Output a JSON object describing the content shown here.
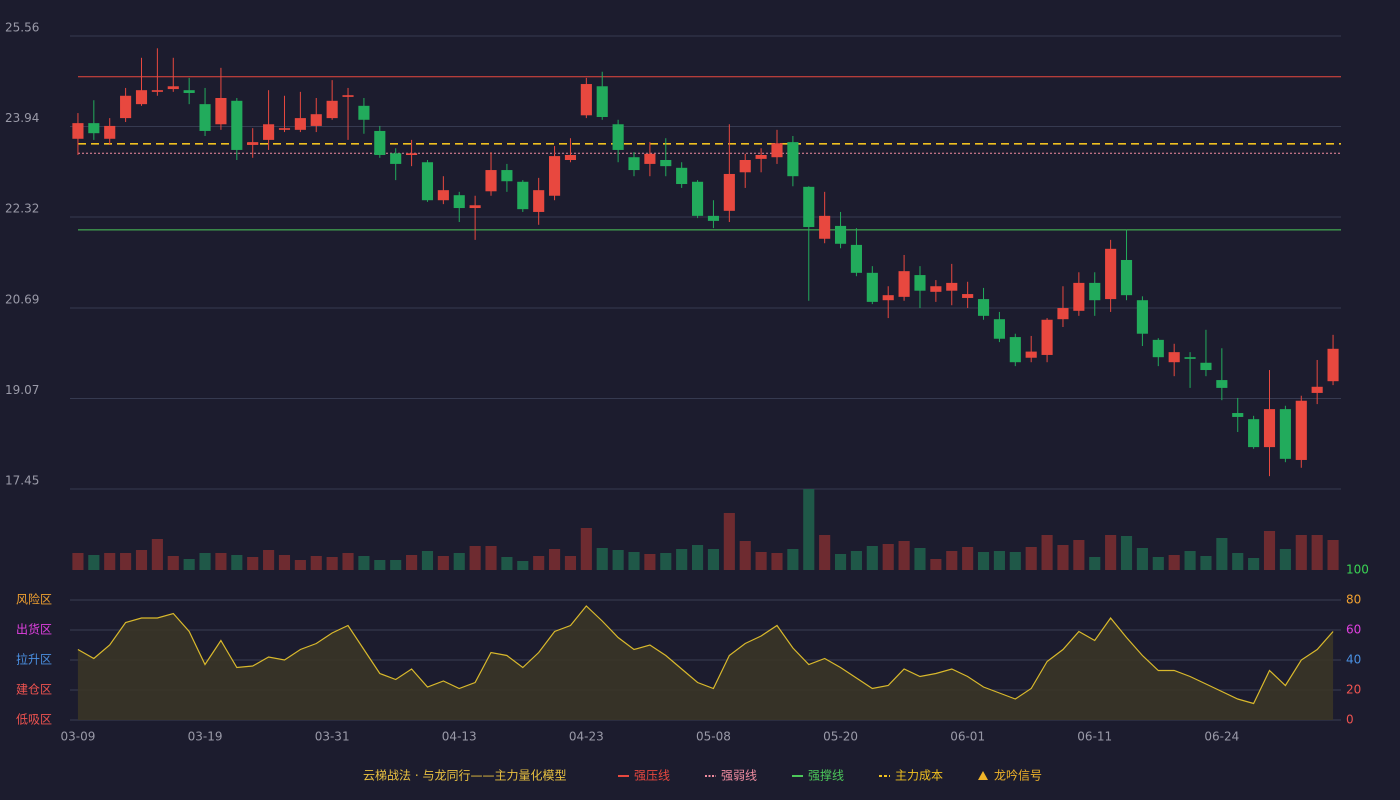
{
  "chart_data": [
    {
      "type": "candlestick",
      "categories": [
        "03-09",
        null,
        null,
        null,
        null,
        null,
        null,
        null,
        "03-19",
        null,
        null,
        null,
        null,
        null,
        null,
        null,
        "03-31",
        null,
        null,
        null,
        null,
        null,
        null,
        null,
        "04-13",
        null,
        null,
        null,
        null,
        null,
        null,
        null,
        "04-23",
        null,
        null,
        null,
        null,
        null,
        null,
        null,
        "05-08",
        null,
        null,
        null,
        null,
        null,
        null,
        null,
        "05-20",
        null,
        null,
        null,
        null,
        null,
        null,
        null,
        "06-01",
        null,
        null,
        null,
        null,
        null,
        null,
        null,
        "06-11",
        null,
        null,
        null,
        null,
        null,
        null,
        null,
        "06-24",
        null,
        null,
        null,
        null,
        null,
        null,
        null
      ],
      "open": [
        23.72,
        24.0,
        23.72,
        24.09,
        24.34,
        24.56,
        24.61,
        24.59,
        24.34,
        23.98,
        24.4,
        23.61,
        23.7,
        23.88,
        23.88,
        23.95,
        24.09,
        24.47,
        24.31,
        23.86,
        23.46,
        23.43,
        23.3,
        22.62,
        22.71,
        22.48,
        22.78,
        23.16,
        22.95,
        22.41,
        22.7,
        23.34,
        24.14,
        24.66,
        23.98,
        23.39,
        23.27,
        23.34,
        23.2,
        22.95,
        22.34,
        22.43,
        23.12,
        23.36,
        23.39,
        23.66,
        22.86,
        21.93,
        22.16,
        21.82,
        21.32,
        20.83,
        20.89,
        21.28,
        20.98,
        21.0,
        20.87,
        20.85,
        20.49,
        20.17,
        19.8,
        19.85,
        20.49,
        20.64,
        21.14,
        20.85,
        21.55,
        20.83,
        20.12,
        19.72,
        19.81,
        19.71,
        19.4,
        18.81,
        18.7,
        18.2,
        18.88,
        17.97,
        19.17,
        19.38
      ],
      "high": [
        24.18,
        24.41,
        24.09,
        24.63,
        25.17,
        25.34,
        25.17,
        24.81,
        24.63,
        24.99,
        24.45,
        23.91,
        24.59,
        24.49,
        24.56,
        24.45,
        24.77,
        24.63,
        24.45,
        23.95,
        23.55,
        23.7,
        23.34,
        23.05,
        22.77,
        22.7,
        23.48,
        23.27,
        22.98,
        23.02,
        23.59,
        23.73,
        24.81,
        24.92,
        24.06,
        23.48,
        23.66,
        23.73,
        23.3,
        22.98,
        22.62,
        23.98,
        23.45,
        23.55,
        23.88,
        23.77,
        22.87,
        22.77,
        22.41,
        22.12,
        21.44,
        21.08,
        21.64,
        21.44,
        21.19,
        21.48,
        21.16,
        21.05,
        20.62,
        20.23,
        20.19,
        20.51,
        21.08,
        21.33,
        21.33,
        21.91,
        22.09,
        20.9,
        20.15,
        20.05,
        19.9,
        20.3,
        19.97,
        19.08,
        18.76,
        19.58,
        18.94,
        19.12,
        19.76,
        20.21
      ],
      "low": [
        23.43,
        23.7,
        23.61,
        24.02,
        24.31,
        24.49,
        24.56,
        24.34,
        23.77,
        23.88,
        23.34,
        23.38,
        23.52,
        23.84,
        23.84,
        23.84,
        24.06,
        23.7,
        23.81,
        23.38,
        22.98,
        23.23,
        22.59,
        22.55,
        22.23,
        21.91,
        22.7,
        22.77,
        22.41,
        22.18,
        22.62,
        23.3,
        24.09,
        24.06,
        23.3,
        23.05,
        23.05,
        23.05,
        22.84,
        22.3,
        22.12,
        22.23,
        22.84,
        23.12,
        23.27,
        22.87,
        20.82,
        21.85,
        21.76,
        21.26,
        20.76,
        20.51,
        20.82,
        20.69,
        20.8,
        20.74,
        20.69,
        20.48,
        20.08,
        19.65,
        19.72,
        19.72,
        20.35,
        20.55,
        20.55,
        20.62,
        20.83,
        20.01,
        19.65,
        19.47,
        19.26,
        19.47,
        19.04,
        18.47,
        18.17,
        17.68,
        17.93,
        17.83,
        18.97,
        19.31
      ],
      "close": [
        24.0,
        23.82,
        23.95,
        24.49,
        24.59,
        24.59,
        24.66,
        24.54,
        23.86,
        24.45,
        23.52,
        23.66,
        23.98,
        23.91,
        24.09,
        24.16,
        24.4,
        24.5,
        24.06,
        23.43,
        23.27,
        23.46,
        22.62,
        22.8,
        22.48,
        22.53,
        23.16,
        22.96,
        22.46,
        22.8,
        23.41,
        23.43,
        24.7,
        24.11,
        23.52,
        23.16,
        23.45,
        23.23,
        22.91,
        22.34,
        22.25,
        23.09,
        23.34,
        23.43,
        23.64,
        23.05,
        22.14,
        22.34,
        21.84,
        21.32,
        20.8,
        20.92,
        21.35,
        21.0,
        21.08,
        21.14,
        20.94,
        20.55,
        20.14,
        19.72,
        19.91,
        20.48,
        20.69,
        21.14,
        20.83,
        21.75,
        20.92,
        20.23,
        19.81,
        19.9,
        19.78,
        19.58,
        19.26,
        18.74,
        18.2,
        18.88,
        17.99,
        19.03,
        19.28,
        19.96
      ],
      "up_color": "#e8483f",
      "down_color": "#22ab5c",
      "ylim": [
        17.45,
        25.56
      ],
      "yticks": [
        25.56,
        23.94,
        22.32,
        20.69,
        19.07,
        17.45
      ],
      "grid": true,
      "levels": [
        {
          "name": "强压线",
          "value": 24.83,
          "color": "#e8483f",
          "style": "solid"
        },
        {
          "name": "强弱线",
          "value": 23.46,
          "color": "#f08ca0",
          "style": "dotted"
        },
        {
          "name": "强撑线",
          "value": 22.09,
          "color": "#4cc75a",
          "style": "solid"
        },
        {
          "name": "主力成本",
          "value": 23.63,
          "color": "#f0c020",
          "style": "dashed"
        }
      ],
      "signal": {
        "name": "龙吟信号",
        "color": "#f0b429",
        "marker": "triangle"
      },
      "legend_title": "云梯战法 · 与龙同行——主力量化模型"
    },
    {
      "type": "bar",
      "values": [
        17,
        15,
        17,
        17,
        20,
        31,
        14,
        11,
        17,
        17,
        15,
        13,
        20,
        15,
        10,
        14,
        13,
        17,
        14,
        10,
        10,
        15,
        19,
        14,
        17,
        24,
        24,
        13,
        9,
        14,
        21,
        14,
        42,
        22,
        20,
        18,
        16,
        17,
        21,
        25,
        21,
        57,
        29,
        18,
        17,
        21,
        81,
        35,
        16,
        19,
        24,
        26,
        29,
        22,
        11,
        19,
        23,
        18,
        19,
        18,
        23,
        35,
        25,
        30,
        13,
        35,
        34,
        22,
        13,
        15,
        19,
        14,
        32,
        17,
        12,
        39,
        21,
        35,
        35,
        30
      ],
      "up_color": "#6e2b30",
      "down_color": "#1f5848"
    },
    {
      "type": "line",
      "values": [
        47,
        41,
        50,
        65,
        68,
        68,
        71,
        59,
        37,
        53,
        35,
        36,
        42,
        40,
        47,
        51,
        58,
        63,
        47,
        31,
        27,
        34,
        22,
        26,
        21,
        25,
        45,
        43,
        35,
        45,
        59,
        63,
        76,
        66,
        55,
        47,
        50,
        43,
        34,
        25,
        21,
        43,
        51,
        56,
        63,
        48,
        37,
        41,
        35,
        28,
        21,
        23,
        34,
        29,
        31,
        34,
        29,
        22,
        18,
        14,
        21,
        39,
        47,
        59,
        53,
        68,
        55,
        43,
        33,
        33,
        29,
        24,
        19,
        14,
        11,
        33,
        23,
        40,
        47,
        59
      ],
      "color": "#d9b92c",
      "fill": "#3a3527",
      "ylim": [
        0,
        100
      ],
      "yticks": [
        100,
        80,
        60,
        40,
        20,
        0
      ],
      "ytick_colors": [
        "#39d353",
        "#f0a030",
        "#e040e0",
        "#4a90e2",
        "#ef5350",
        "#ef5350"
      ],
      "zone_ticks": [
        {
          "value": 80,
          "label": "风险区",
          "color": "#f0a030"
        },
        {
          "value": 60,
          "label": "出货区",
          "color": "#e040e0"
        },
        {
          "value": 40,
          "label": "拉升区",
          "color": "#4a90e2"
        },
        {
          "value": 20,
          "label": "建仓区",
          "color": "#ef5350"
        },
        {
          "value": 0,
          "label": "低吸区",
          "color": "#ef5350"
        }
      ]
    }
  ]
}
